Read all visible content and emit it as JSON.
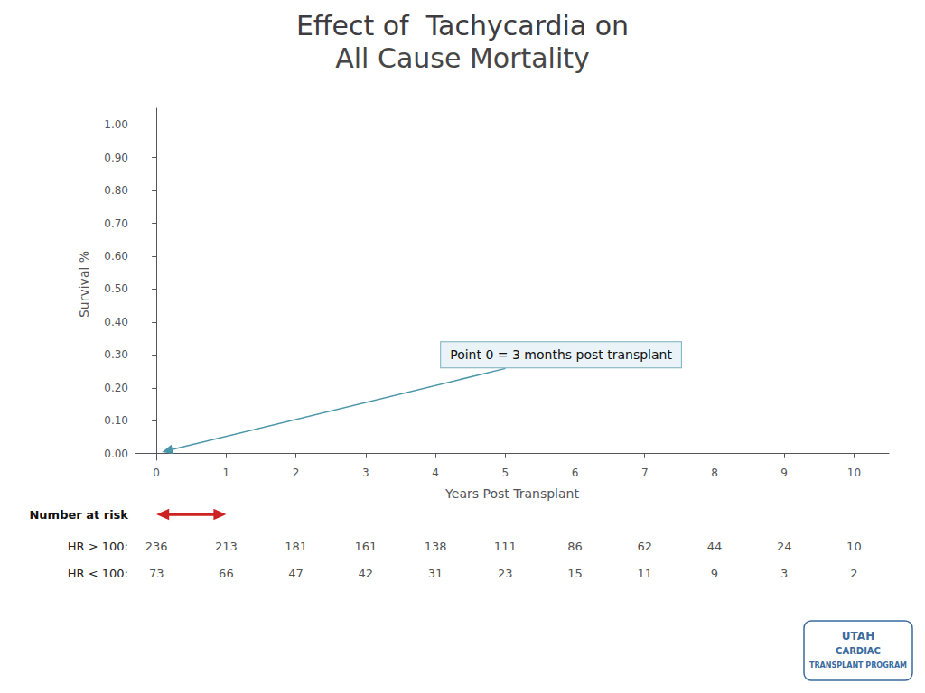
{
  "chart_data": {
    "type": "line",
    "title": "Effect of  Tachycardia on",
    "subtitle": "All Cause Mortality",
    "xlabel": "Years Post Transplant",
    "ylabel": "Survival %",
    "xlim": [
      -0.3,
      10.5
    ],
    "xticks": [
      0,
      1,
      2,
      3,
      4,
      5,
      6,
      7,
      8,
      9,
      10
    ],
    "ylim": [
      -0.02,
      1.05
    ],
    "yticks": [
      {
        "value": 0.0,
        "label": "0.00"
      },
      {
        "value": 0.1,
        "label": "0.10"
      },
      {
        "value": 0.2,
        "label": "0.20"
      },
      {
        "value": 0.3,
        "label": "0.30"
      },
      {
        "value": 0.4,
        "label": "0.40"
      },
      {
        "value": 0.5,
        "label": "0.50"
      },
      {
        "value": 0.6,
        "label": "0.60"
      },
      {
        "value": 0.7,
        "label": "0.70"
      },
      {
        "value": 0.8,
        "label": "0.80"
      },
      {
        "value": 0.9,
        "label": "0.90"
      },
      {
        "value": 1.0,
        "label": "1.00"
      }
    ],
    "grid": false,
    "annotations": [
      {
        "text": "Point 0 = 3 months post transplant",
        "x": 5.8,
        "y": 0.3,
        "arrow_to": [
          0.08,
          0.005
        ]
      }
    ],
    "range_arrow": {
      "x": [
        0,
        1
      ],
      "color": "#cc2222"
    },
    "at_risk": {
      "title": "Number at risk",
      "rows": [
        {
          "name": "HR > 100:",
          "values": [
            236,
            213,
            181,
            161,
            138,
            111,
            86,
            62,
            44,
            24,
            10
          ]
        },
        {
          "name": "HR < 100:",
          "values": [
            73,
            66,
            47,
            42,
            31,
            23,
            15,
            11,
            9,
            3,
            2
          ]
        }
      ]
    },
    "logo": [
      "UTAH",
      "CARDIAC",
      "TRANSPLANT PROGRAM"
    ]
  }
}
